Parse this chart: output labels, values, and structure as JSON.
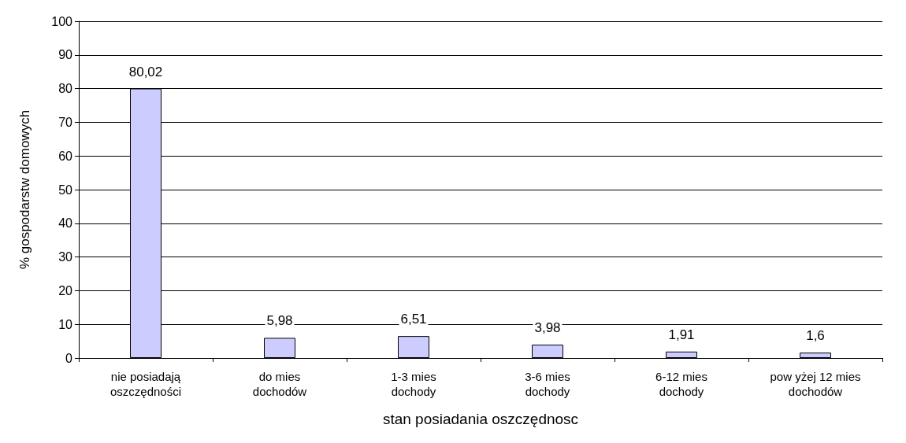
{
  "chart_data": {
    "type": "bar",
    "categories": [
      "nie posiadają\noszczędności",
      "do mies\ndochodów",
      "1-3 mies\ndochody",
      "3-6 mies\ndochody",
      "6-12 mies\ndochody",
      "pow yżej 12 mies\ndochodów"
    ],
    "values": [
      80.02,
      5.98,
      6.51,
      3.98,
      1.91,
      1.6
    ],
    "value_labels": [
      "80,02",
      "5,98",
      "6,51",
      "3,98",
      "1,91",
      "1,6"
    ],
    "color": "#ccccff",
    "xlabel": "stan posiadania oszczędnosc",
    "ylabel": "% gospodarstw domowych",
    "ylim": [
      0,
      100
    ],
    "yticks": [
      0,
      10,
      20,
      30,
      40,
      50,
      60,
      70,
      80,
      90,
      100
    ],
    "grid": "y"
  }
}
